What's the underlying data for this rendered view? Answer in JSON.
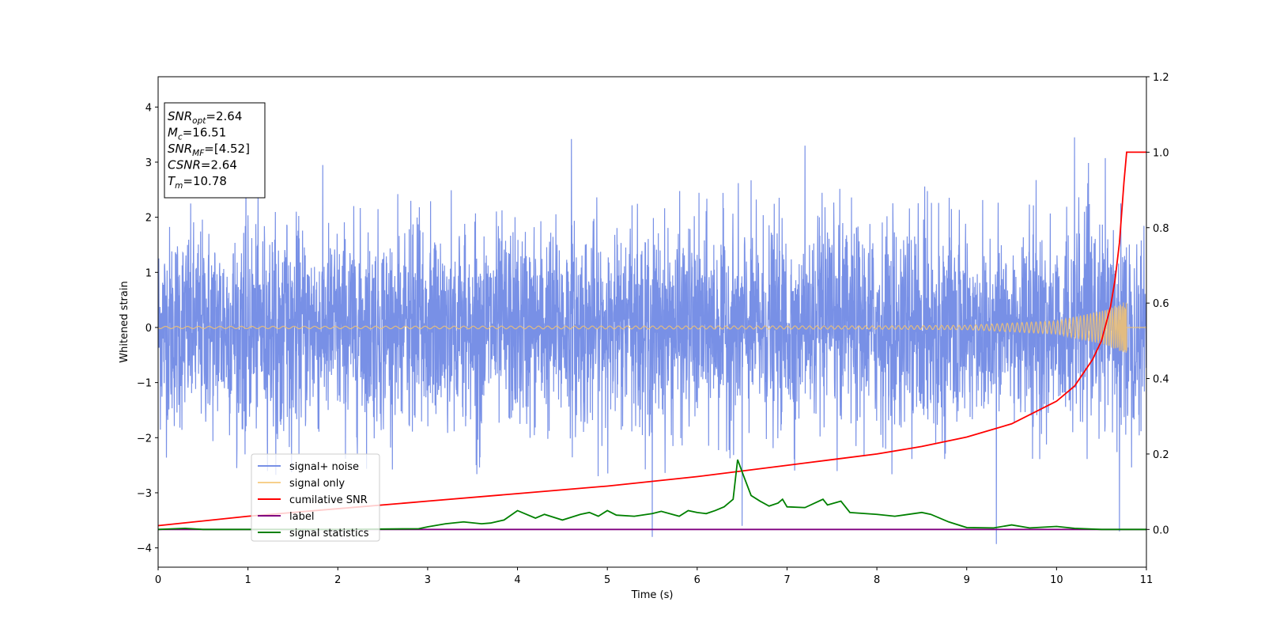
{
  "chart_data": {
    "type": "line",
    "xlabel": "Time (s)",
    "ylabel": "Whitened strain",
    "xlim": [
      0,
      11
    ],
    "ylim_left": [
      -4.35,
      4.55
    ],
    "ylim_right": [
      -0.1,
      1.2
    ],
    "xticks": [
      "0",
      "1",
      "2",
      "3",
      "4",
      "5",
      "6",
      "7",
      "8",
      "9",
      "10",
      "11"
    ],
    "yticks_left": [
      "−4",
      "−3",
      "−2",
      "−1",
      "0",
      "1",
      "2",
      "3",
      "4"
    ],
    "yticks_right": [
      "0.0",
      "0.2",
      "0.4",
      "0.6",
      "0.8",
      "1.0",
      "1.2"
    ],
    "grid": false,
    "legend_position": "lower-left",
    "annotation": {
      "lines": [
        {
          "main": "SNR",
          "sub": "opt",
          "value": "=2.64"
        },
        {
          "main": "M",
          "sub": "c",
          "value": "=16.51"
        },
        {
          "main": "SNR",
          "sub": "MF",
          "value": "=[4.52]"
        },
        {
          "main": "CSNR",
          "sub": "",
          "value": "=2.64"
        },
        {
          "main": "T",
          "sub": "m",
          "value": "=10.78"
        }
      ]
    },
    "series": [
      {
        "name": "signal+ noise",
        "axis": "left",
        "color": "#7890e6",
        "kind": "noise",
        "std": 0.9,
        "xrange": [
          0,
          11
        ],
        "typical_range": [
          -2.7,
          3.2
        ],
        "extremes": [
          [
            5.5,
            -3.8
          ],
          [
            6.5,
            -3.6
          ],
          [
            9.33,
            -3.93
          ],
          [
            10.7,
            -3.7
          ],
          [
            10.2,
            3.45
          ],
          [
            4.6,
            3.42
          ],
          [
            7.2,
            3.3
          ]
        ]
      },
      {
        "name": "signal only",
        "axis": "left",
        "color": "#f5c46e",
        "kind": "chirp",
        "xrange": [
          0,
          10.78
        ],
        "envelope": [
          [
            0,
            0.02
          ],
          [
            8,
            0.03
          ],
          [
            9,
            0.04
          ],
          [
            10,
            0.12
          ],
          [
            10.5,
            0.3
          ],
          [
            10.78,
            0.48
          ]
        ]
      },
      {
        "name": "cumilative SNR",
        "axis": "right",
        "color": "#ff0000",
        "x": [
          0,
          1,
          2,
          3,
          4,
          5,
          6,
          7,
          7.5,
          8,
          8.5,
          9,
          9.5,
          10,
          10.2,
          10.4,
          10.5,
          10.6,
          10.65,
          10.7,
          10.75,
          10.78,
          11
        ],
        "values": [
          0.01,
          0.035,
          0.055,
          0.075,
          0.095,
          0.115,
          0.14,
          0.17,
          0.185,
          0.2,
          0.22,
          0.245,
          0.28,
          0.34,
          0.38,
          0.45,
          0.5,
          0.59,
          0.66,
          0.76,
          0.92,
          1.0,
          1.0
        ]
      },
      {
        "name": "label",
        "axis": "right",
        "color": "#800080",
        "x": [
          0,
          11
        ],
        "values": [
          0,
          0
        ]
      },
      {
        "name": "signal statistics",
        "axis": "right",
        "color": "#008000",
        "x": [
          0,
          0.3,
          0.5,
          1.0,
          2.0,
          2.9,
          3.0,
          3.2,
          3.4,
          3.6,
          3.7,
          3.85,
          4.0,
          4.2,
          4.3,
          4.5,
          4.7,
          4.8,
          4.9,
          5.0,
          5.1,
          5.3,
          5.5,
          5.6,
          5.8,
          5.9,
          6.0,
          6.1,
          6.2,
          6.3,
          6.4,
          6.45,
          6.52,
          6.6,
          6.7,
          6.8,
          6.9,
          6.95,
          7.0,
          7.2,
          7.4,
          7.45,
          7.6,
          7.7,
          8.0,
          8.2,
          8.5,
          8.6,
          8.8,
          9.0,
          9.3,
          9.5,
          9.7,
          10.0,
          10.2,
          10.5,
          11.0
        ],
        "values": [
          0.0,
          0.003,
          0.0,
          0.0,
          0.0,
          0.002,
          0.007,
          0.015,
          0.02,
          0.015,
          0.017,
          0.025,
          0.05,
          0.03,
          0.04,
          0.025,
          0.04,
          0.045,
          0.035,
          0.05,
          0.038,
          0.035,
          0.042,
          0.048,
          0.035,
          0.05,
          0.045,
          0.042,
          0.05,
          0.06,
          0.08,
          0.185,
          0.14,
          0.09,
          0.075,
          0.062,
          0.07,
          0.08,
          0.06,
          0.058,
          0.08,
          0.065,
          0.075,
          0.045,
          0.04,
          0.035,
          0.045,
          0.04,
          0.02,
          0.005,
          0.004,
          0.012,
          0.004,
          0.008,
          0.003,
          0.0,
          0.0
        ]
      }
    ]
  }
}
